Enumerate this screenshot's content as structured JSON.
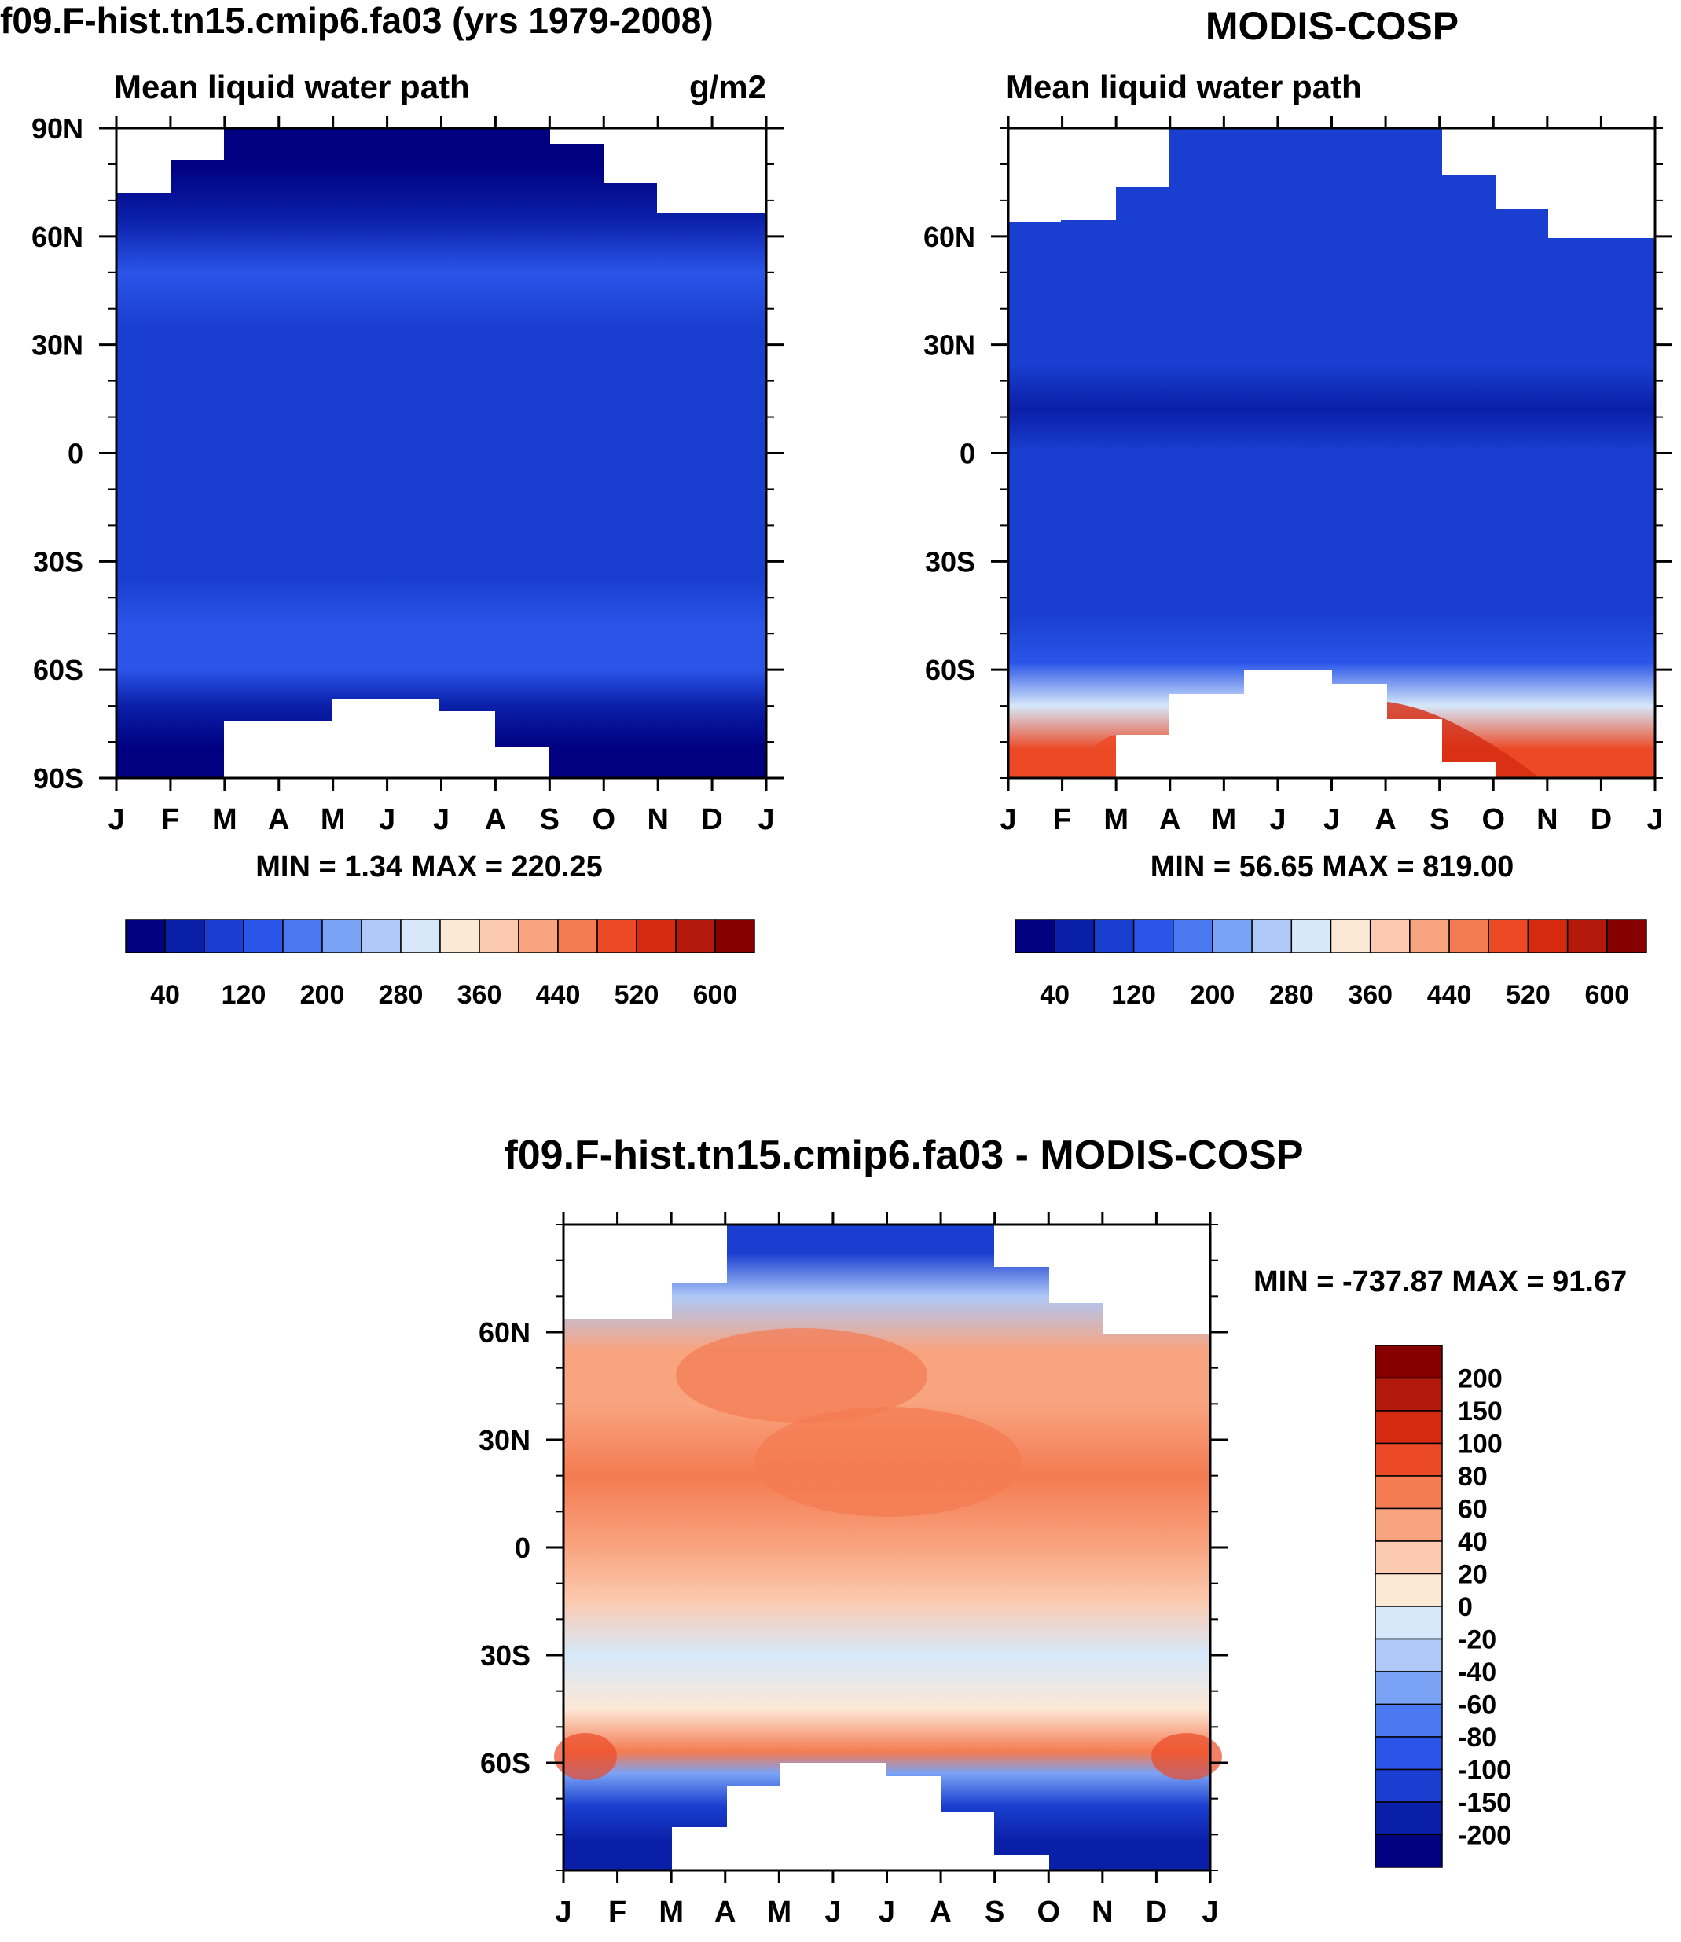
{
  "colors": {
    "main_levels": [
      "#000080",
      "#0a1fa8",
      "#1a3fd0",
      "#2a55e8",
      "#4a78f0",
      "#7aa2f5",
      "#aec8f8",
      "#d6e8fa",
      "#fde8d6",
      "#fccab0",
      "#f8a47f",
      "#f47b52",
      "#ec4a26",
      "#d62a10",
      "#b3190a",
      "#870000"
    ],
    "diff_levels": [
      "#000080",
      "#0a1fa8",
      "#1a3fd0",
      "#2a55e8",
      "#4a78f0",
      "#7aa2f5",
      "#aec8f8",
      "#d6e8fa",
      "#fde8d6",
      "#fccab0",
      "#f8a47f",
      "#f47b52",
      "#ec4a26",
      "#d62a10",
      "#b3190a",
      "#870000"
    ]
  },
  "chart_data": [
    {
      "type": "heatmap",
      "title": "f09.F-hist.tn15.cmip6.fa03 (yrs 1979-2008)",
      "subtitle_left": "Mean liquid water path",
      "subtitle_right": "g/m2",
      "x_ticks": [
        "J",
        "F",
        "M",
        "A",
        "M",
        "J",
        "J",
        "A",
        "S",
        "O",
        "N",
        "D",
        "J"
      ],
      "y_ticks": [
        "90N",
        "60N",
        "30N",
        "0",
        "30S",
        "60S",
        "90S"
      ],
      "ylim": [
        -90,
        90
      ],
      "stats": "MIN =   1.34 MAX = 220.25",
      "colorbar_labels": [
        "40",
        "120",
        "200",
        "280",
        "360",
        "440",
        "520",
        "600"
      ],
      "bands": [
        {
          "lat": 80,
          "value": 30
        },
        {
          "lat": 65,
          "value": 60
        },
        {
          "lat": 50,
          "value": 120
        },
        {
          "lat": 35,
          "value": 90
        },
        {
          "lat": 15,
          "value": 100
        },
        {
          "lat": 0,
          "value": 100
        },
        {
          "lat": -20,
          "value": 100
        },
        {
          "lat": -35,
          "value": 80
        },
        {
          "lat": -48,
          "value": 150
        },
        {
          "lat": -60,
          "value": 120
        },
        {
          "lat": -70,
          "value": 60
        },
        {
          "lat": -82,
          "value": 30
        }
      ]
    },
    {
      "type": "heatmap",
      "title": "MODIS-COSP",
      "subtitle_left": "Mean liquid water path",
      "x_ticks": [
        "J",
        "F",
        "M",
        "A",
        "M",
        "J",
        "J",
        "A",
        "S",
        "O",
        "N",
        "D",
        "J"
      ],
      "y_ticks": [
        "60N",
        "30N",
        "0",
        "30S",
        "60S"
      ],
      "ylim": [
        -90,
        90
      ],
      "stats": "MIN =  56.65 MAX = 819.00",
      "colorbar_labels": [
        "40",
        "120",
        "200",
        "280",
        "360",
        "440",
        "520",
        "600"
      ],
      "bands": [
        {
          "lat": 80,
          "value": 100
        },
        {
          "lat": 62,
          "value": 100
        },
        {
          "lat": 45,
          "value": 90
        },
        {
          "lat": 25,
          "value": 80
        },
        {
          "lat": 12,
          "value": 50
        },
        {
          "lat": 0,
          "value": 80
        },
        {
          "lat": -25,
          "value": 90
        },
        {
          "lat": -45,
          "value": 80
        },
        {
          "lat": -58,
          "value": 120
        },
        {
          "lat": -70,
          "value": 300
        },
        {
          "lat": -82,
          "value": 500
        }
      ]
    },
    {
      "type": "heatmap",
      "title": "f09.F-hist.tn15.cmip6.fa03 - MODIS-COSP",
      "x_ticks": [
        "J",
        "F",
        "M",
        "A",
        "M",
        "J",
        "J",
        "A",
        "S",
        "O",
        "N",
        "D",
        "J"
      ],
      "y_ticks": [
        "60N",
        "30N",
        "0",
        "30S",
        "60S"
      ],
      "ylim": [
        -90,
        90
      ],
      "stats": "MIN = -737.87 MAX =  91.67",
      "colorbar_labels": [
        "200",
        "150",
        "100",
        "80",
        "60",
        "40",
        "20",
        "0",
        "-20",
        "-40",
        "-60",
        "-80",
        "-100",
        "-150",
        "-200"
      ],
      "bands": [
        {
          "lat": 82,
          "value": -120
        },
        {
          "lat": 70,
          "value": -40
        },
        {
          "lat": 55,
          "value": 50
        },
        {
          "lat": 40,
          "value": 55
        },
        {
          "lat": 20,
          "value": 65
        },
        {
          "lat": 0,
          "value": 40
        },
        {
          "lat": -15,
          "value": 25
        },
        {
          "lat": -30,
          "value": -10
        },
        {
          "lat": -45,
          "value": 10
        },
        {
          "lat": -57,
          "value": 60
        },
        {
          "lat": -63,
          "value": -60
        },
        {
          "lat": -72,
          "value": -150
        },
        {
          "lat": -82,
          "value": -200
        }
      ]
    }
  ]
}
